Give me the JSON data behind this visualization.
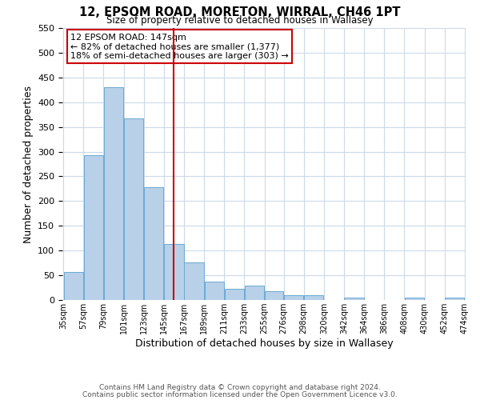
{
  "title": "12, EPSOM ROAD, MORETON, WIRRAL, CH46 1PT",
  "subtitle": "Size of property relative to detached houses in Wallasey",
  "xlabel": "Distribution of detached houses by size in Wallasey",
  "ylabel": "Number of detached properties",
  "bin_edges": [
    35,
    57,
    79,
    101,
    123,
    145,
    167,
    189,
    211,
    233,
    255,
    276,
    298,
    320,
    342,
    364,
    386,
    408,
    430,
    452,
    474
  ],
  "bar_heights": [
    57,
    293,
    430,
    368,
    228,
    114,
    76,
    38,
    22,
    29,
    17,
    10,
    10,
    0,
    5,
    0,
    0,
    5,
    0,
    5
  ],
  "bar_color": "#b8d0e8",
  "bar_edgecolor": "#6aaad4",
  "tick_labels": [
    "35sqm",
    "57sqm",
    "79sqm",
    "101sqm",
    "123sqm",
    "145sqm",
    "167sqm",
    "189sqm",
    "211sqm",
    "233sqm",
    "255sqm",
    "276sqm",
    "298sqm",
    "320sqm",
    "342sqm",
    "364sqm",
    "386sqm",
    "408sqm",
    "430sqm",
    "452sqm",
    "474sqm"
  ],
  "vline_x": 156,
  "vline_color": "#cc0000",
  "ylim": [
    0,
    550
  ],
  "yticks": [
    0,
    50,
    100,
    150,
    200,
    250,
    300,
    350,
    400,
    450,
    500,
    550
  ],
  "annotation_title": "12 EPSOM ROAD: 147sqm",
  "annotation_line1": "← 82% of detached houses are smaller (1,377)",
  "annotation_line2": "18% of semi-detached houses are larger (303) →",
  "annotation_box_color": "#ffffff",
  "annotation_box_edgecolor": "#cc0000",
  "footer_line1": "Contains HM Land Registry data © Crown copyright and database right 2024.",
  "footer_line2": "Contains public sector information licensed under the Open Government Licence v3.0.",
  "background_color": "#ffffff",
  "grid_color": "#ccd9e8"
}
